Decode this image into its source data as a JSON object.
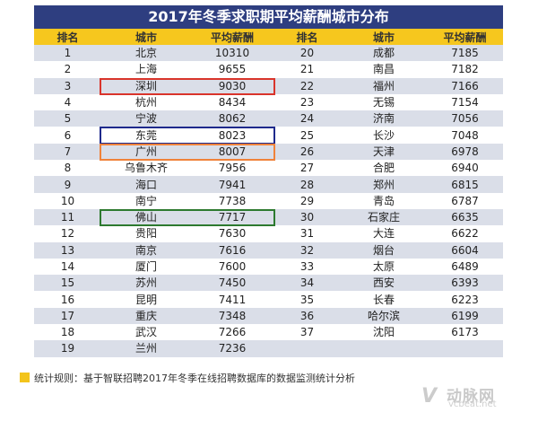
{
  "title": "2017年冬季求职期平均薪酬城市分布",
  "headers": [
    "排名",
    "城市",
    "平均薪酬",
    "排名",
    "城市",
    "平均薪酬"
  ],
  "rows": [
    [
      "1",
      "北京",
      "10310",
      "20",
      "成都",
      "7185"
    ],
    [
      "2",
      "上海",
      "9655",
      "21",
      "南昌",
      "7182"
    ],
    [
      "3",
      "深圳",
      "9030",
      "22",
      "福州",
      "7166"
    ],
    [
      "4",
      "杭州",
      "8434",
      "23",
      "无锡",
      "7154"
    ],
    [
      "5",
      "宁波",
      "8062",
      "24",
      "济南",
      "7056"
    ],
    [
      "6",
      "东莞",
      "8023",
      "25",
      "长沙",
      "7048"
    ],
    [
      "7",
      "广州",
      "8007",
      "26",
      "天津",
      "6978"
    ],
    [
      "8",
      "乌鲁木齐",
      "7956",
      "27",
      "合肥",
      "6940"
    ],
    [
      "9",
      "海口",
      "7941",
      "28",
      "郑州",
      "6815"
    ],
    [
      "10",
      "南宁",
      "7738",
      "29",
      "青岛",
      "6787"
    ],
    [
      "11",
      "佛山",
      "7717",
      "30",
      "石家庄",
      "6635"
    ],
    [
      "12",
      "贵阳",
      "7630",
      "31",
      "大连",
      "6622"
    ],
    [
      "13",
      "南京",
      "7616",
      "32",
      "烟台",
      "6604"
    ],
    [
      "14",
      "厦门",
      "7600",
      "33",
      "太原",
      "6489"
    ],
    [
      "15",
      "苏州",
      "7450",
      "34",
      "西安",
      "6393"
    ],
    [
      "16",
      "昆明",
      "7411",
      "35",
      "长春",
      "6223"
    ],
    [
      "17",
      "重庆",
      "7348",
      "36",
      "哈尔滨",
      "6199"
    ],
    [
      "18",
      "武汉",
      "7266",
      "37",
      "沈阳",
      "6173"
    ],
    [
      "19",
      "兰州",
      "7236",
      "",
      "",
      " "
    ]
  ],
  "highlights": [
    {
      "row": 2,
      "city": "深圳",
      "color": "#d9342b"
    },
    {
      "row": 5,
      "city": "东莞",
      "color": "#1f2a8c"
    },
    {
      "row": 6,
      "city": "广州",
      "color": "#f0823a"
    },
    {
      "row": 10,
      "city": "佛山",
      "color": "#2d7a2f"
    }
  ],
  "note": "统计规则：基于智联招聘2017年冬季在线招聘数据库的数据监测统计分析",
  "watermark": {
    "mark": "V",
    "name": "动脉网",
    "domain": "vcbeat.net"
  }
}
